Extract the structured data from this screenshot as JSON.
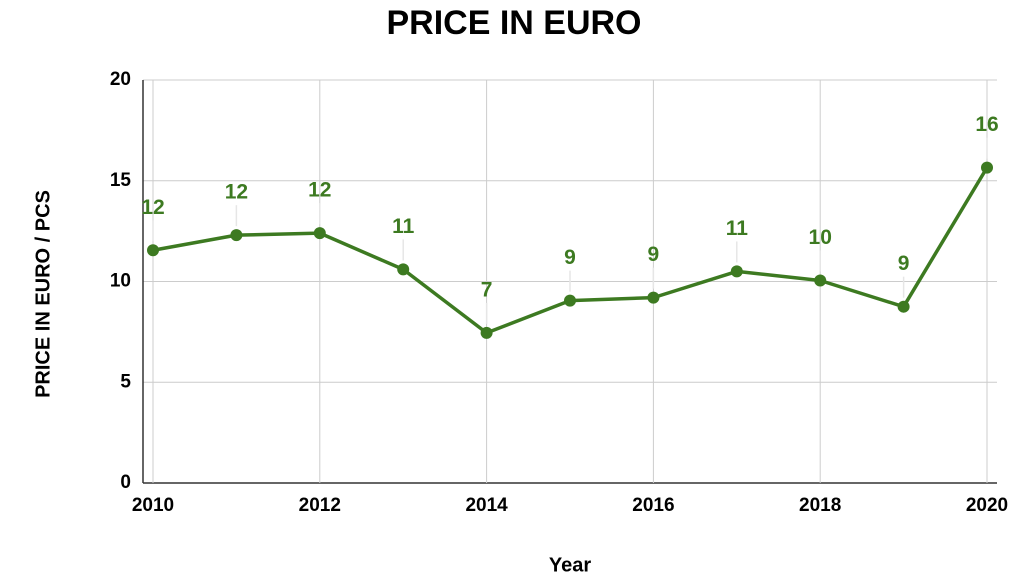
{
  "chart_data": {
    "type": "line",
    "title": "PRICE IN EURO",
    "x_label": "Year",
    "y_label": "PRICE IN EURO / PCS",
    "x": [
      2010,
      2011,
      2012,
      2013,
      2014,
      2015,
      2016,
      2017,
      2018,
      2019,
      2020
    ],
    "series": [
      {
        "name": "PRICE IN EURO / PCS",
        "color": "#3d7a21",
        "values": [
          11.55,
          12.3,
          12.4,
          10.6,
          7.45,
          9.05,
          9.2,
          10.5,
          10.05,
          8.75,
          15.65
        ],
        "value_labels": [
          "12",
          "12",
          "12",
          "11",
          "7",
          "9",
          "9",
          "11",
          "10",
          "9",
          "16"
        ]
      }
    ],
    "xlim": [
      2010,
      2020
    ],
    "xticks": [
      2010,
      2012,
      2014,
      2016,
      2018,
      2020
    ],
    "ylim": [
      0,
      20
    ],
    "yticks": [
      0,
      5,
      10,
      15,
      20
    ],
    "grid": true
  }
}
